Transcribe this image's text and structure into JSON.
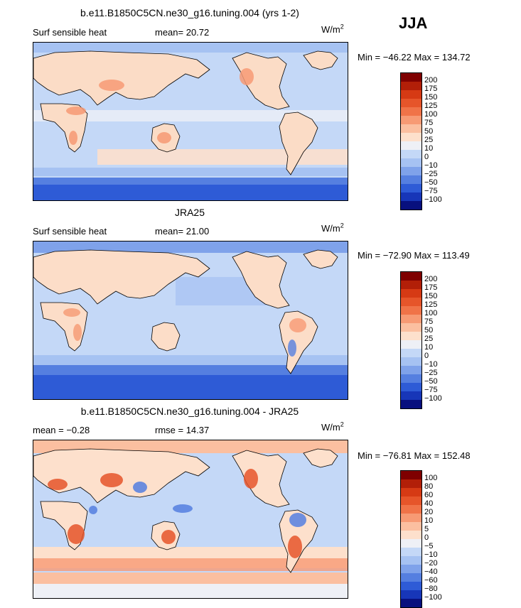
{
  "season": "JJA",
  "units_base": "W/m",
  "units_exp": "2",
  "panels": [
    {
      "title": "b.e11.B1850C5CN.ne30_g16.tuning.004 (yrs 1-2)",
      "stat1_label": "Surf sensible heat",
      "stat2": "mean=  20.72",
      "minmax": "Min = −46.22 Max = 134.72",
      "levels": [
        "200",
        "175",
        "150",
        "125",
        "100",
        "75",
        "50",
        "25",
        "10",
        "0",
        "−10",
        "−25",
        "−50",
        "−75",
        "−100"
      ]
    },
    {
      "title": "JRA25",
      "stat1_label": "Surf sensible heat",
      "stat2": "mean=  21.00",
      "minmax": "Min = −72.90 Max = 113.49",
      "levels": [
        "200",
        "175",
        "150",
        "125",
        "100",
        "75",
        "50",
        "25",
        "10",
        "0",
        "−10",
        "−25",
        "−50",
        "−75",
        "−100"
      ]
    },
    {
      "title": "b.e11.B1850C5CN.ne30_g16.tuning.004 - JRA25",
      "stat1_label": "mean =  −0.28",
      "stat2": "rmse =  14.37",
      "minmax": "Min = −76.81 Max = 152.48",
      "levels": [
        "100",
        "80",
        "60",
        "40",
        "20",
        "10",
        "5",
        "0",
        "−5",
        "−10",
        "−20",
        "−40",
        "−60",
        "−80",
        "−100"
      ]
    }
  ],
  "colors": {
    "scale": [
      "#7f0000",
      "#b21f08",
      "#d63a14",
      "#e6552a",
      "#f07348",
      "#f79a74",
      "#fbbfa0",
      "#fde0cc",
      "#eef0f6",
      "#c4d8f7",
      "#a6c2f2",
      "#7fa2ea",
      "#557fe0",
      "#2e5bd6",
      "#1736b8",
      "#08107e"
    ],
    "land_model": "#fbdcc6",
    "land_obs": "#fcddc8",
    "ocean": "#c4d8f7",
    "coast": "#000000"
  }
}
